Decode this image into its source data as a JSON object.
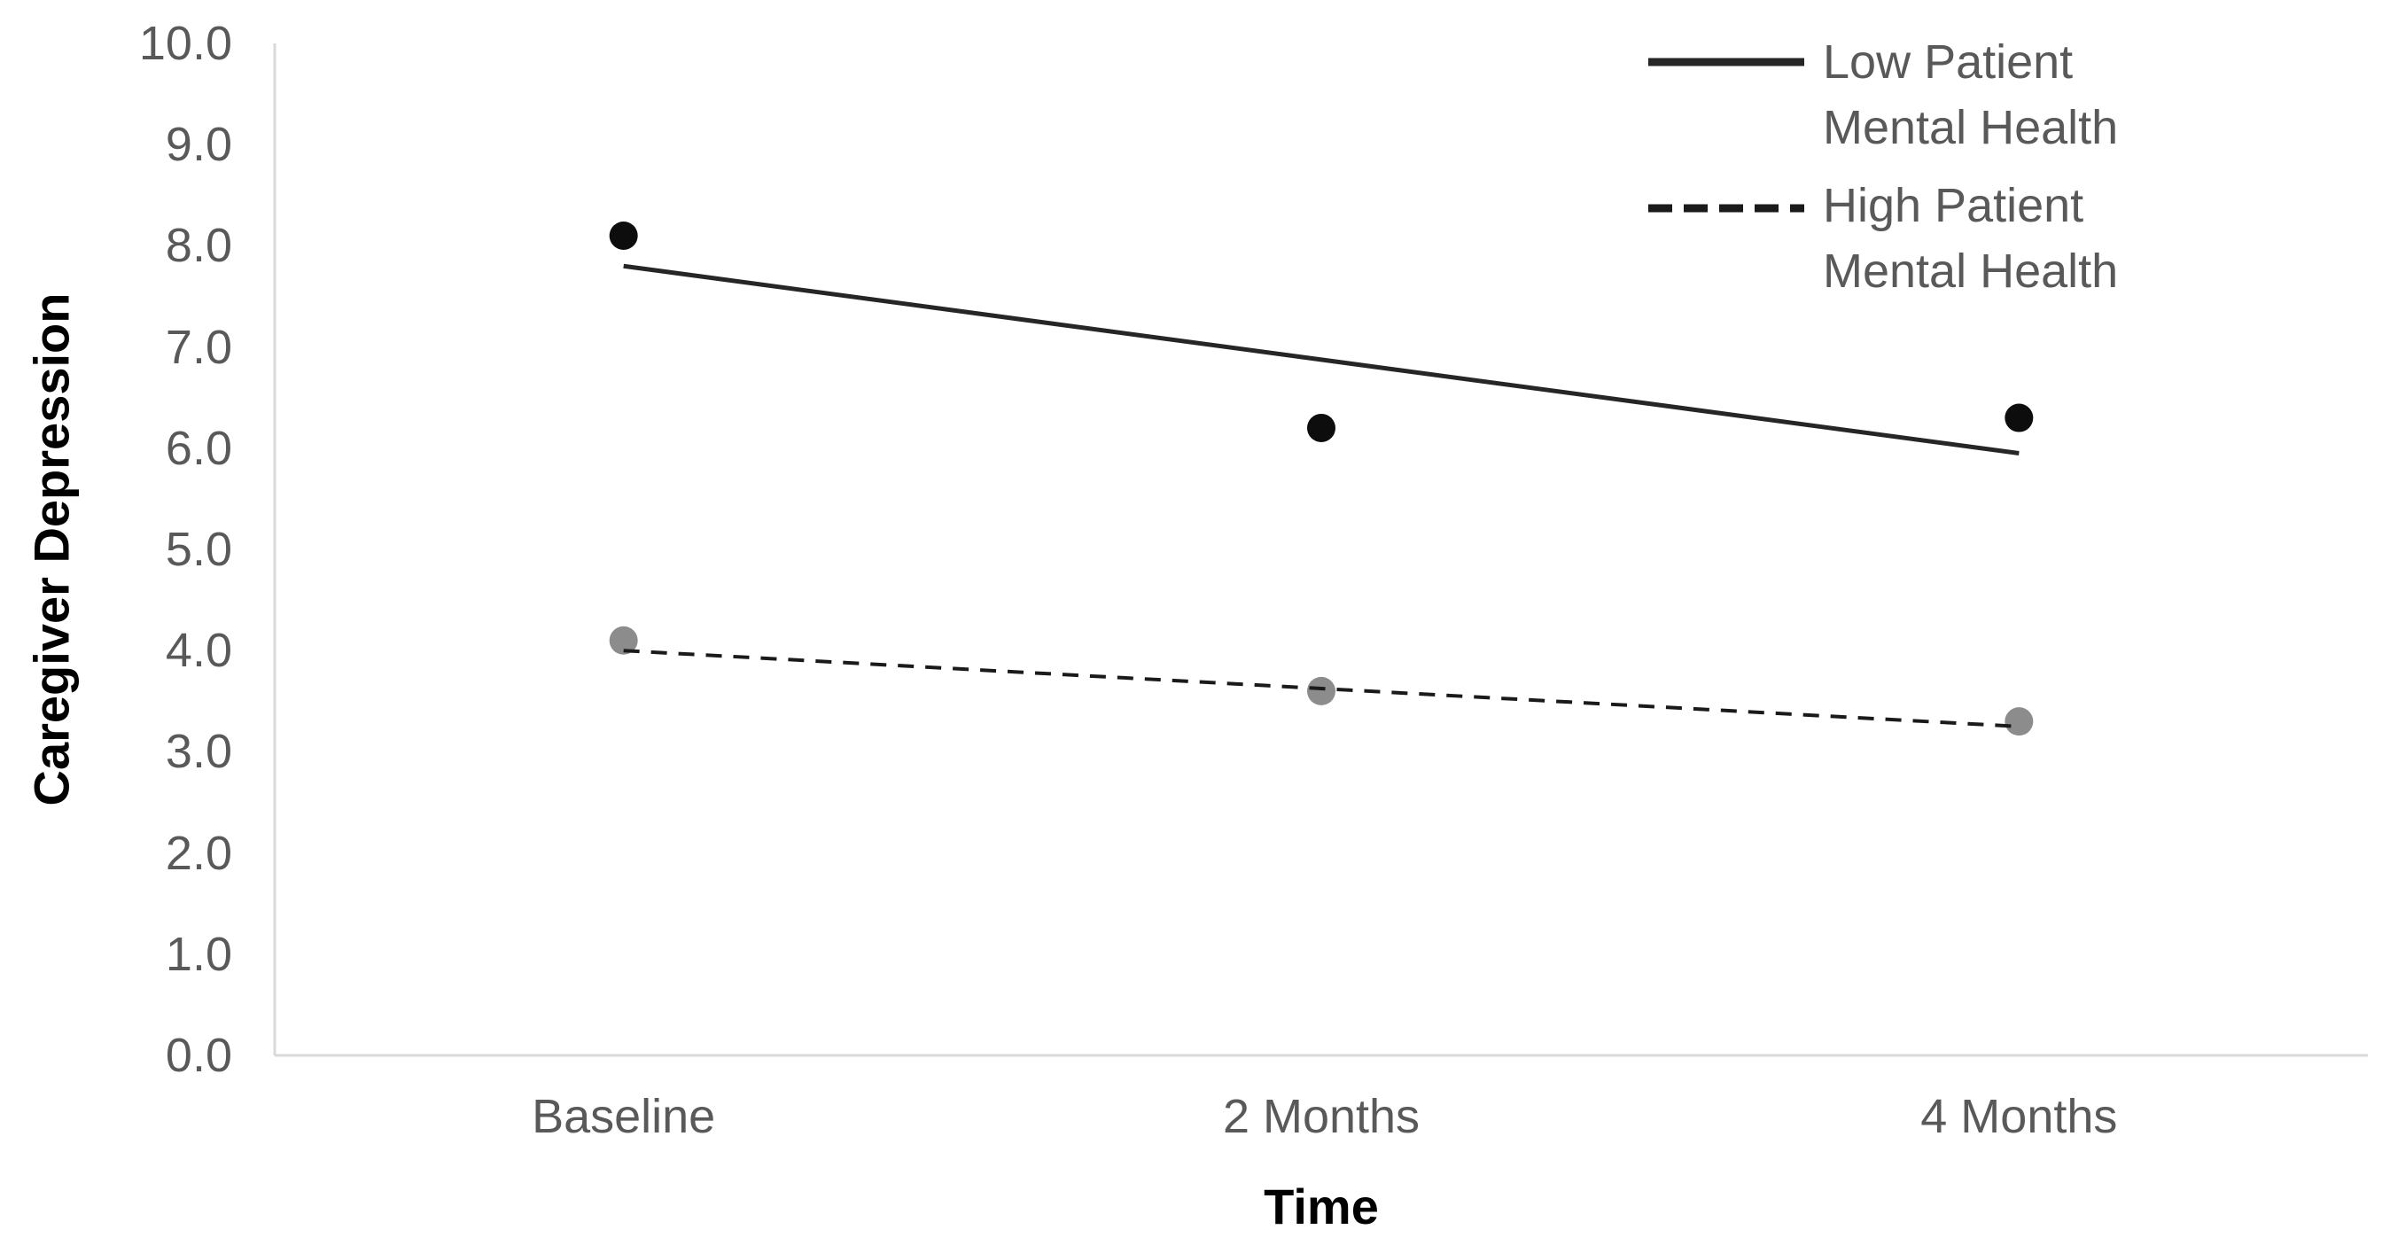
{
  "chart_data": {
    "type": "line",
    "title": "",
    "xlabel": "Time",
    "ylabel": "Caregiver Depression",
    "categories": [
      "Baseline",
      "2 Months",
      "4 Months"
    ],
    "y_axis": {
      "min": 0.0,
      "max": 10.0,
      "step": 1.0,
      "tick_labels": [
        "0.0",
        "1.0",
        "2.0",
        "3.0",
        "4.0",
        "5.0",
        "6.0",
        "7.0",
        "8.0",
        "9.0",
        "10.0"
      ]
    },
    "grid": false,
    "series": [
      {
        "name": "Low Patient Mental Health",
        "line_style": "solid",
        "line_color": "#262626",
        "marker": "circle",
        "marker_color": "#0d0d0d",
        "points": [
          8.1,
          6.2,
          6.3
        ],
        "trend_line": [
          7.8,
          5.95
        ]
      },
      {
        "name": "High Patient Mental Health",
        "line_style": "dashed",
        "line_color": "#1a1a1a",
        "marker": "circle",
        "marker_color": "#8c8c8c",
        "points": [
          4.1,
          3.6,
          3.3
        ],
        "trend_line": [
          4.0,
          3.25
        ]
      }
    ],
    "legend": {
      "position": "top-right",
      "entries": [
        {
          "label_line1": "Low Patient",
          "label_line2": "Mental Health"
        },
        {
          "label_line1": "High Patient",
          "label_line2": "Mental Health"
        }
      ]
    }
  },
  "colors": {
    "background": "#ffffff",
    "axis_line": "#d9d9d9",
    "tick_text": "#595959",
    "title_text": "#000000"
  }
}
